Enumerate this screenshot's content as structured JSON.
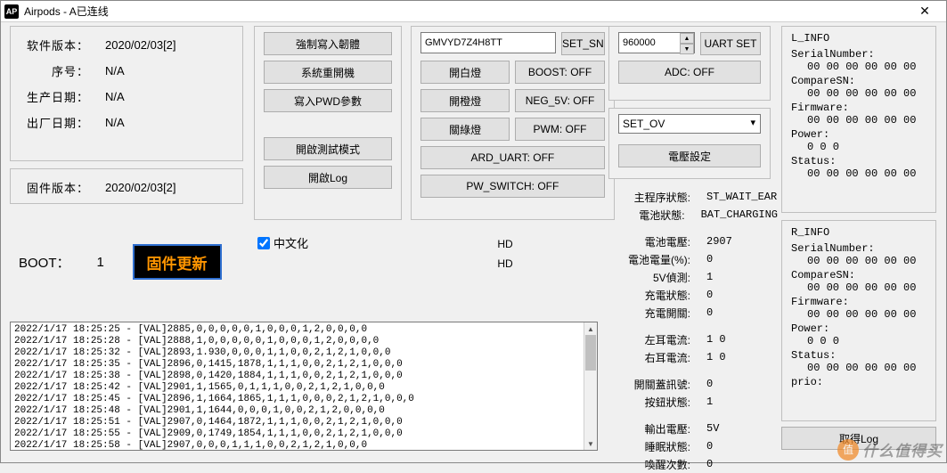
{
  "titlebar": {
    "icon": "AP",
    "title": "Airpods - A已连线"
  },
  "info": {
    "sw_label": "软件版本：",
    "sw_value": "2020/02/03[2]",
    "serial_label": "序号：",
    "serial_value": "N/A",
    "prod_label": "生产日期：",
    "prod_value": "N/A",
    "ship_label": "出厂日期：",
    "ship_value": "N/A",
    "fw_label": "固件版本：",
    "fw_value": "2020/02/03[2]"
  },
  "boot": {
    "label": "BOOT：",
    "value": "1",
    "btn": "固件更新"
  },
  "col2": {
    "b1": "強制寫入韌體",
    "b2": "系統重開機",
    "b3": "寫入PWD參數",
    "b4": "開啟測試模式",
    "b5": "開啟Log"
  },
  "chk": {
    "label": "中文化",
    "checked": true
  },
  "col3": {
    "sn_input": "GMVYD7Z4H8TT",
    "set_sn": "SET_SN",
    "b_white": "開白燈",
    "boost": "BOOST: OFF",
    "b_orange": "開橙燈",
    "neg5v": "NEG_5V: OFF",
    "b_green": "關綠燈",
    "pwm": "PWM: OFF",
    "ard": "ARD_UART: OFF",
    "pwsw": "PW_SWITCH: OFF"
  },
  "hd": {
    "hd1": "HD",
    "hd2": "HD"
  },
  "col4a": {
    "spin": "960000",
    "uart_set": "UART SET",
    "adc": "ADC: OFF"
  },
  "col4b": {
    "select": "SET_OV",
    "volt": "電壓設定"
  },
  "status": [
    {
      "l": "主程序狀態:",
      "v": "ST_WAIT_EAR"
    },
    {
      "l": "電池狀態:",
      "v": "BAT_CHARGING"
    },
    null,
    {
      "l": "電池電壓:",
      "v": "2907"
    },
    {
      "l": "電池電量(%):",
      "v": "0"
    },
    {
      "l": "5V偵測:",
      "v": "1"
    },
    {
      "l": "充電狀態:",
      "v": "0"
    },
    {
      "l": "充電開關:",
      "v": "0"
    },
    null,
    {
      "l": "左耳電流:",
      "v": "1  0"
    },
    {
      "l": "右耳電流:",
      "v": "1  0"
    },
    null,
    {
      "l": "開關蓋訊號:",
      "v": "0"
    },
    {
      "l": "按鈕狀態:",
      "v": "1"
    },
    null,
    {
      "l": "輸出電壓:",
      "v": "5V"
    },
    {
      "l": "睡眠狀態:",
      "v": "0"
    },
    {
      "l": "喚醒次數:",
      "v": "0"
    }
  ],
  "r_info": {
    "l_title": "L_INFO",
    "r_title": "R_INFO",
    "items": [
      {
        "l": "SerialNumber:",
        "v": "00 00 00 00 00 00"
      },
      {
        "l": "CompareSN:",
        "v": "00 00 00 00 00 00"
      },
      {
        "l": "Firmware:",
        "v": "00 00 00 00 00 00"
      },
      {
        "l": "Power:",
        "v": "0 0 0"
      },
      {
        "l": "Status:",
        "v": "00 00 00 00 00 00"
      }
    ],
    "r_extra": {
      "l": "prio:",
      "v": ""
    }
  },
  "getlog": "取得Log",
  "log": "2022/1/17 18:25:25 - [VAL]2885,0,0,0,0,0,1,0,0,0,1,2,0,0,0,0\n2022/1/17 18:25:28 - [VAL]2888,1,0,0,0,0,0,1,0,0,0,1,2,0,0,0,0\n2022/1/17 18:25:32 - [VAL]2893,1.930,0,0,0,1,1,0,0,2,1,2,1,0,0,0\n2022/1/17 18:25:35 - [VAL]2896,0,1415,1878,1,1,1,0,0,2,1,2,1,0,0,0\n2022/1/17 18:25:38 - [VAL]2898,0,1420,1884,1,1,1,0,0,2,1,2,1,0,0,0\n2022/1/17 18:25:42 - [VAL]2901,1,1565,0,1,1,1,0,0,2,1,2,1,0,0,0\n2022/1/17 18:25:45 - [VAL]2896,1,1664,1865,1,1,1,0,0,0,2,1,2,1,0,0,0\n2022/1/17 18:25:48 - [VAL]2901,1,1644,0,0,0,1,0,0,2,1,2,0,0,0,0\n2022/1/17 18:25:51 - [VAL]2907,0,1464,1872,1,1,1,0,0,2,1,2,1,0,0,0\n2022/1/17 18:25:55 - [VAL]2909,0,1749,1854,1,1,1,0,0,2,1,2,1,0,0,0\n2022/1/17 18:25:58 - [VAL]2907,0,0,0,1,1,1,0,0,2,1,2,1,0,0,0",
  "watermark": {
    "badge": "值",
    "text": "什么值得买"
  }
}
